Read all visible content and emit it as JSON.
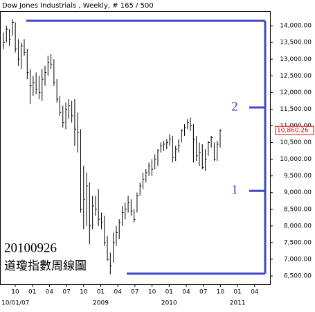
{
  "chart_data": {
    "type": "hlc",
    "title": "Dow Jones Industrials , Weekly, # 165 / 500",
    "start_label": "10/01/07",
    "color": "#000000",
    "high": [
      13800,
      14000,
      13900,
      14200,
      14100,
      13600,
      13500,
      13600,
      13300,
      12700,
      12500,
      12600,
      12500,
      12700,
      12800,
      13100,
      13150,
      13000,
      12400,
      11900,
      11600,
      11700,
      11800,
      11750,
      11800,
      11400,
      10900,
      9800,
      9600,
      9300,
      8900,
      8900,
      9100,
      8400,
      8300,
      7700,
      7200,
      7800,
      8000,
      8200,
      8600,
      8700,
      8900,
      8800,
      8500,
      9000,
      9300,
      9600,
      9700,
      9900,
      10000,
      10150,
      10300,
      10500,
      10550,
      10600,
      10750,
      10700,
      10400,
      10600,
      10900,
      11050,
      11200,
      11250,
      11050,
      10700,
      10500,
      10450,
      10300,
      10550,
      10700,
      10500,
      10550,
      10900
    ],
    "low": [
      13300,
      13500,
      13400,
      13700,
      13200,
      12800,
      12700,
      13100,
      12400,
      11650,
      11900,
      11950,
      11800,
      11750,
      12200,
      12500,
      12700,
      12200,
      11700,
      11300,
      10950,
      10900,
      11200,
      11100,
      10400,
      10200,
      8400,
      7900,
      8000,
      7450,
      7900,
      8300,
      8000,
      7900,
      7400,
      6950,
      6550,
      6900,
      7400,
      7600,
      8000,
      8200,
      8400,
      8300,
      8100,
      8400,
      8900,
      9100,
      9300,
      9500,
      9500,
      9700,
      9800,
      10200,
      10250,
      10300,
      10400,
      9900,
      9950,
      10200,
      10500,
      10700,
      10900,
      10850,
      9900,
      9950,
      9800,
      9700,
      9650,
      10100,
      10350,
      9950,
      9950,
      10350
    ],
    "close": [
      13500,
      13900,
      13600,
      14100,
      13300,
      13000,
      13400,
      13200,
      12600,
      12200,
      12300,
      12100,
      12000,
      12400,
      12600,
      12900,
      12850,
      12300,
      11800,
      11400,
      11100,
      11500,
      11600,
      11300,
      10900,
      10800,
      8500,
      8800,
      9200,
      8000,
      8600,
      8500,
      8200,
      8100,
      7500,
      7000,
      6800,
      7500,
      7800,
      8100,
      8400,
      8500,
      8700,
      8450,
      8200,
      8900,
      9200,
      9400,
      9600,
      9800,
      9700,
      10000,
      10250,
      10400,
      10450,
      10500,
      10600,
      10050,
      10300,
      10400,
      10850,
      10950,
      11100,
      11000,
      10600,
      10100,
      10200,
      9750,
      10000,
      10500,
      10650,
      10000,
      10450,
      10860
    ],
    "ylim": [
      6250,
      14440
    ],
    "yticks": [
      {
        "value": 6500,
        "label": "6,500.00"
      },
      {
        "value": 7000,
        "label": "7,000.00"
      },
      {
        "value": 7500,
        "label": "7,500.00"
      },
      {
        "value": 8000,
        "label": "8,000.00"
      },
      {
        "value": 8500,
        "label": "8,500.00"
      },
      {
        "value": 9000,
        "label": "9,000.00"
      },
      {
        "value": 9500,
        "label": "9,500.00"
      },
      {
        "value": 10000,
        "label": "10,000.00"
      },
      {
        "value": 10500,
        "label": "10,500.00"
      },
      {
        "value": 11000,
        "label": "11,000.00"
      },
      {
        "value": 11500,
        "label": "11,500.00"
      },
      {
        "value": 12000,
        "label": "12,000.00"
      },
      {
        "value": 12500,
        "label": "12,500.00"
      },
      {
        "value": 13000,
        "label": "13,000.00"
      },
      {
        "value": 13500,
        "label": "13,500.00"
      },
      {
        "value": 14000,
        "label": "14,000.00"
      }
    ],
    "xticks": [
      "10",
      "01",
      "04",
      "07",
      "10",
      "01",
      "04",
      "07",
      "10",
      "01",
      "04",
      "07",
      "10",
      "01",
      "04"
    ],
    "year_labels": [
      null,
      "2009",
      "2010",
      "2011"
    ],
    "last_value": {
      "value": 10860.26,
      "label": "10,860.26"
    },
    "annotation_date": "20100926",
    "annotation_caption": "道瓊指數周線圖",
    "range_lines": {
      "top": 14150,
      "bottom": 6570,
      "color": "#3f48cc"
    },
    "levels": [
      {
        "label": "2",
        "value": 11550
      },
      {
        "label": "1",
        "value": 9050
      }
    ]
  }
}
